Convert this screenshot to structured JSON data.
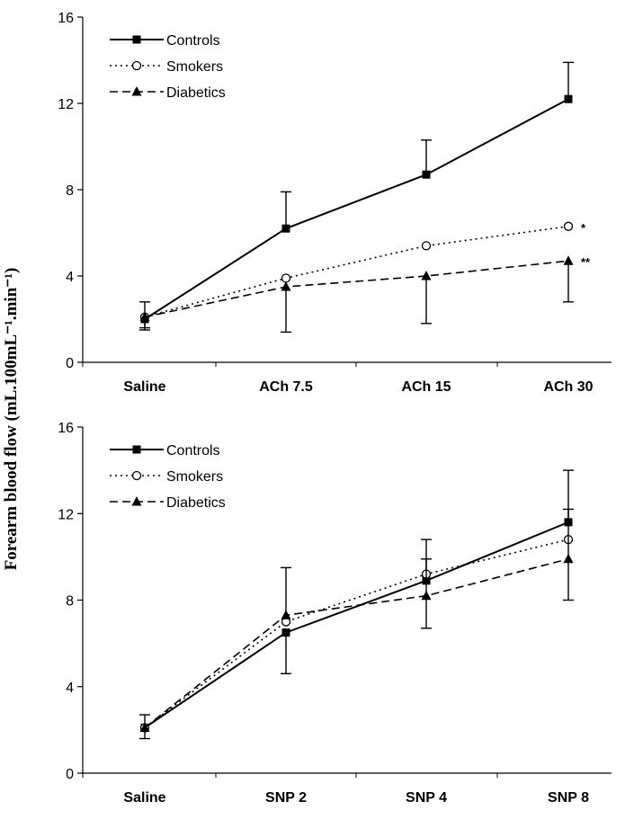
{
  "ylabel": "Forearm blood flow (mL.100mL⁻¹.min⁻¹)",
  "chart_data": [
    {
      "type": "line",
      "title": "",
      "xlabel": "",
      "ylabel": "Forearm blood flow (mL.100mL⁻¹.min⁻¹)",
      "categories": [
        "Saline",
        "ACh 7.5",
        "ACh 15",
        "ACh 30"
      ],
      "ylim": [
        0,
        16
      ],
      "yticks": [
        "0",
        "4",
        "8",
        "12",
        "16"
      ],
      "legend_position": "top-left",
      "series": [
        {
          "name": "Controls",
          "style": "solid",
          "marker": "square",
          "values": [
            2.0,
            6.2,
            8.7,
            12.2
          ],
          "err_up": [
            0.8,
            1.7,
            1.6,
            1.7
          ],
          "err_down": [
            0.5,
            0,
            0,
            0
          ]
        },
        {
          "name": "Smokers",
          "style": "dotted",
          "marker": "circle-open",
          "values": [
            2.1,
            3.9,
            5.4,
            6.3
          ],
          "err_up": [
            0,
            0,
            0,
            0
          ],
          "err_down": [
            0,
            0,
            0,
            0
          ]
        },
        {
          "name": "Diabetics",
          "style": "dashed",
          "marker": "triangle",
          "values": [
            2.1,
            3.5,
            4.0,
            4.7
          ],
          "err_up": [
            0,
            0,
            0,
            0
          ],
          "err_down": [
            0.5,
            2.1,
            2.2,
            1.9
          ]
        }
      ],
      "annotations": [
        {
          "series": "Smokers",
          "category": "ACh 30",
          "text": "*"
        },
        {
          "series": "Diabetics",
          "category": "ACh 30",
          "text": "**"
        }
      ]
    },
    {
      "type": "line",
      "title": "",
      "xlabel": "",
      "ylabel": "Forearm blood flow (mL.100mL⁻¹.min⁻¹)",
      "categories": [
        "Saline",
        "SNP 2",
        "SNP 4",
        "SNP 8"
      ],
      "ylim": [
        0,
        16
      ],
      "yticks": [
        "0",
        "4",
        "8",
        "12",
        "16"
      ],
      "legend_position": "top-left",
      "series": [
        {
          "name": "Controls",
          "style": "solid",
          "marker": "square",
          "values": [
            2.1,
            6.5,
            8.9,
            11.6
          ],
          "err_up": [
            0.6,
            0,
            1.9,
            2.4
          ],
          "err_down": [
            0.5,
            1.9,
            0,
            0
          ]
        },
        {
          "name": "Smokers",
          "style": "dotted",
          "marker": "circle-open",
          "values": [
            2.1,
            7.0,
            9.2,
            10.8
          ],
          "err_up": [
            0,
            0,
            0,
            0
          ],
          "err_down": [
            0,
            0,
            0,
            0
          ]
        },
        {
          "name": "Diabetics",
          "style": "dashed",
          "marker": "triangle",
          "values": [
            2.1,
            7.3,
            8.2,
            9.9
          ],
          "err_up": [
            0,
            2.2,
            1.7,
            2.3
          ],
          "err_down": [
            0,
            0,
            1.5,
            1.9
          ]
        }
      ],
      "annotations": []
    }
  ]
}
